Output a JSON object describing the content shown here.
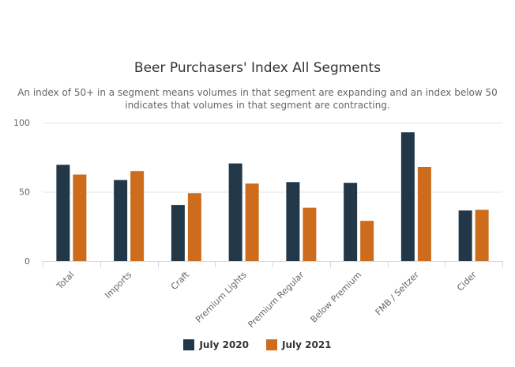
{
  "chart_data": {
    "type": "bar",
    "title": "Beer Purchasers' Index All Segments",
    "subtitle": "An index of 50+ in a segment means volumes in that segment are expanding and an index below 50 indicates that volumes in that segment are contracting.",
    "categories": [
      "Total",
      "Imports",
      "Craft",
      "Premium Lights",
      "Premium Regular",
      "Below Premium",
      "FMB / Seltzer",
      "Cider"
    ],
    "series": [
      {
        "name": "July 2020",
        "color": "#223747",
        "values": [
          69.5,
          58.5,
          40.5,
          70.5,
          57,
          56.5,
          93,
          36.5
        ]
      },
      {
        "name": "July 2021",
        "color": "#cc6c1c",
        "values": [
          62.5,
          65,
          49,
          56,
          38.5,
          29,
          68,
          37
        ]
      }
    ],
    "ylim": [
      0,
      100
    ],
    "yticks": [
      0,
      50,
      100
    ],
    "grid": true,
    "legend_position": "bottom"
  }
}
